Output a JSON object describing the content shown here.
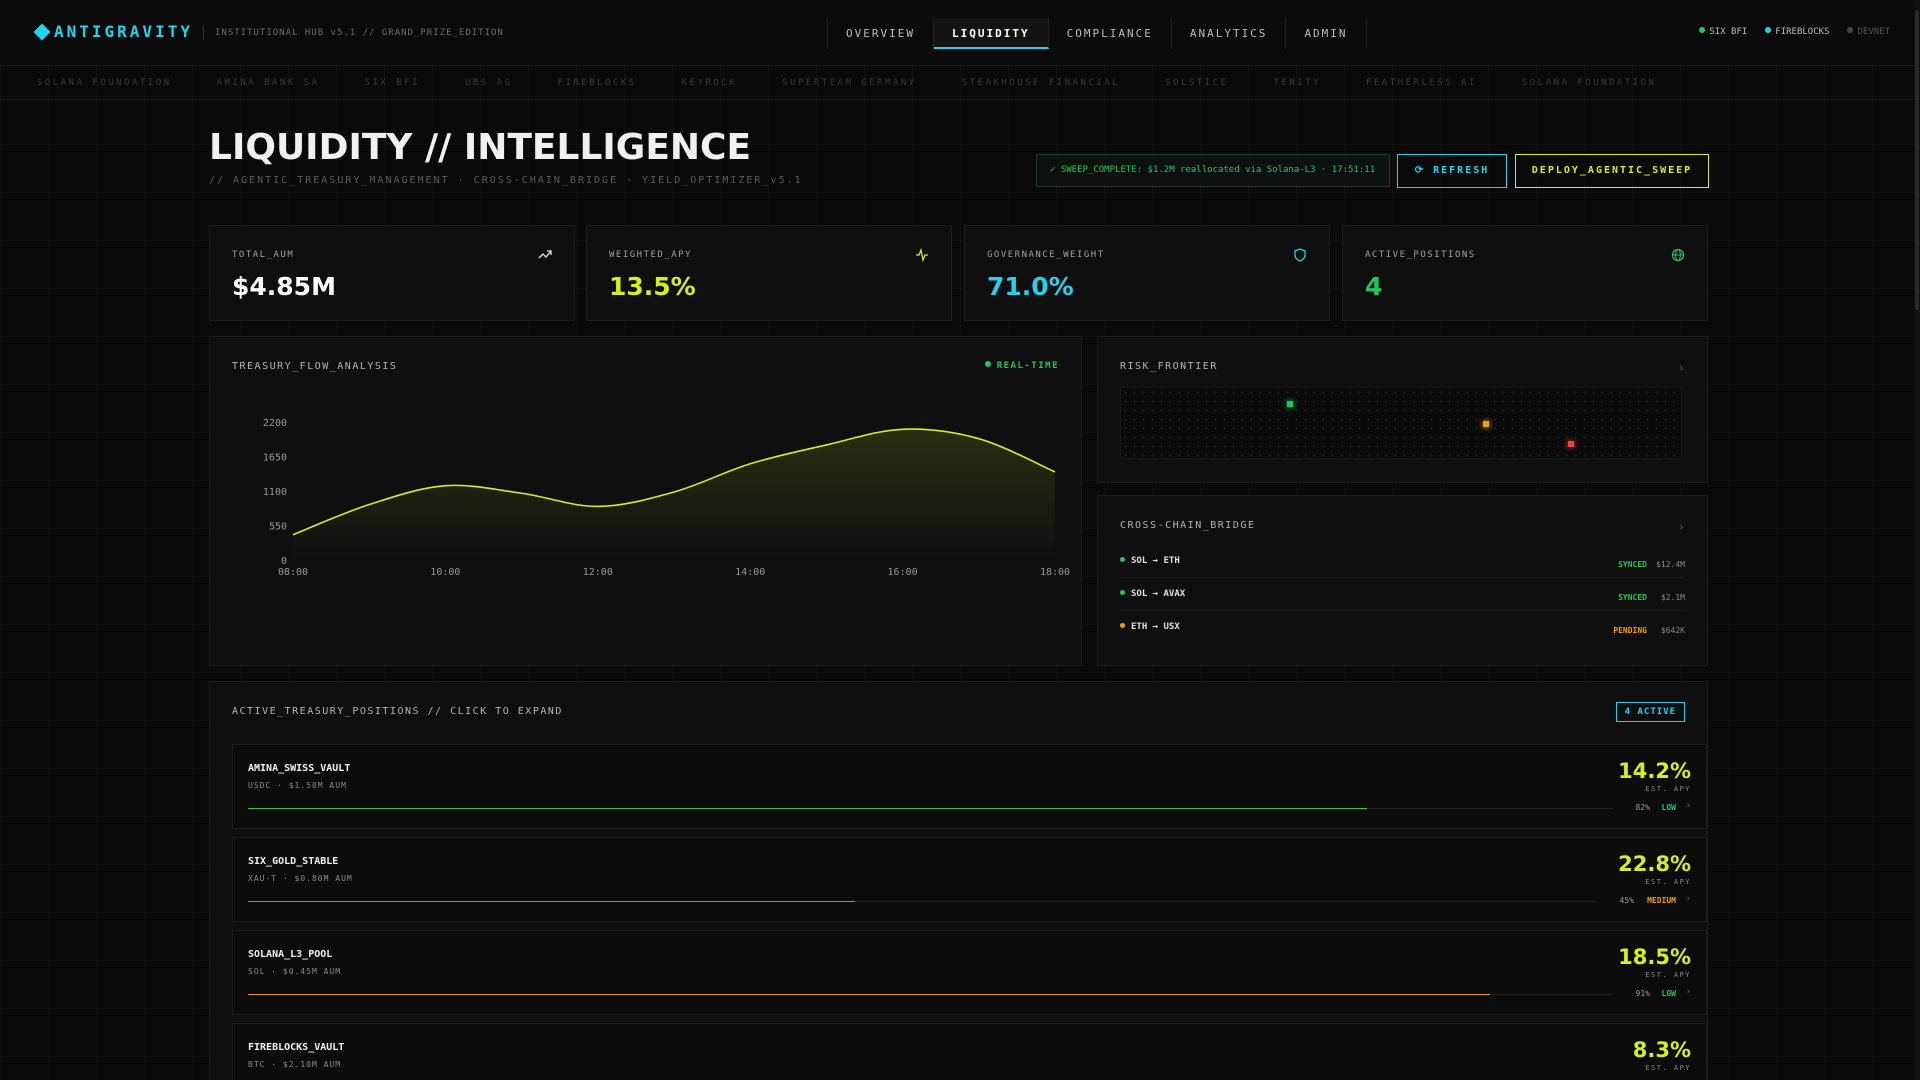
{
  "header": {
    "brand": "ANTIGRAVITY",
    "subtitle": "INSTITUTIONAL HUB v5.1 // GRAND_PRIZE_EDITION",
    "nav": [
      "OVERVIEW",
      "LIQUIDITY",
      "COMPLIANCE",
      "ANALYTICS",
      "ADMIN"
    ],
    "active_nav": "LIQUIDITY",
    "status": [
      {
        "label": "SIX BFI",
        "color": "#22c55e"
      },
      {
        "label": "FIREBLOCKS",
        "color": "#22d3ee"
      },
      {
        "label": "DEVNET",
        "color": "#555555"
      }
    ]
  },
  "ticker": [
    "SOLANA FOUNDATION",
    "AMINA BANK SA",
    "SIX BFI",
    "UBS AG",
    "FIREBLOCKS",
    "KEYROCK",
    "SUPERTEAM GERMANY",
    "STEAKHOUSE FINANCIAL",
    "SOLSTICE",
    "TENITY",
    "FEATHERLESS AI",
    "SOLANA FOUNDATION"
  ],
  "page": {
    "title": "LIQUIDITY // INTELLIGENCE",
    "subtitle": "// AGENTIC_TREASURY_MANAGEMENT · CROSS-CHAIN_BRIDGE · YIELD_OPTIMIZER_v5.1",
    "sweep_status": "✓ SWEEP_COMPLETE: $1.2M reallocated via Solana-L3 · 17:51:11",
    "refresh_label": "REFRESH",
    "deploy_label": "DEPLOY_AGENTIC_SWEEP"
  },
  "kpis": [
    {
      "label": "TOTAL_AUM",
      "value": "$4.85M",
      "icon": "trending-up-icon",
      "color": "#ffffff",
      "icon_color": "#e6e6e6"
    },
    {
      "label": "WEIGHTED_APY",
      "value": "13.5%",
      "icon": "activity-icon",
      "color": "#d4f020",
      "icon_color": "#d4f020"
    },
    {
      "label": "GOVERNANCE_WEIGHT",
      "value": "71.0%",
      "icon": "shield-icon",
      "color": "#22d3ee",
      "icon_color": "#22d3ee"
    },
    {
      "label": "ACTIVE_POSITIONS",
      "value": "4",
      "icon": "globe-icon",
      "color": "#22c55e",
      "icon_color": "#22c55e"
    }
  ],
  "flow_panel": {
    "title": "TREASURY_FLOW_ANALYSIS",
    "live_label": "REAL-TIME"
  },
  "chart_data": {
    "type": "area",
    "title": "TREASURY_FLOW_ANALYSIS",
    "x": [
      "08:00",
      "09:00",
      "10:00",
      "11:00",
      "12:00",
      "13:00",
      "14:00",
      "15:00",
      "16:00",
      "17:00",
      "18:00"
    ],
    "x_ticks": [
      "08:00",
      "10:00",
      "12:00",
      "14:00",
      "16:00",
      "18:00"
    ],
    "values": [
      420,
      900,
      1200,
      1080,
      870,
      1100,
      1550,
      1850,
      2100,
      1950,
      1420
    ],
    "yticks": [
      0,
      550,
      1100,
      1650,
      2200
    ],
    "ylim": [
      0,
      2200
    ],
    "color": "#d4f020"
  },
  "risk_panel": {
    "title": "RISK_FRONTIER",
    "points": [
      {
        "x": 0.3,
        "y": 0.78,
        "color": "#22c55e"
      },
      {
        "x": 0.65,
        "y": 0.5,
        "color": "#f59e0b"
      },
      {
        "x": 0.8,
        "y": 0.22,
        "color": "#ef4444"
      }
    ]
  },
  "bridge_panel": {
    "title": "CROSS-CHAIN_BRIDGE",
    "rows": [
      {
        "route": "SOL → ETH",
        "status": "SYNCED",
        "amount": "$12.4M",
        "color": "#22c55e"
      },
      {
        "route": "SOL → AVAX",
        "status": "SYNCED",
        "amount": "$2.1M",
        "color": "#22c55e"
      },
      {
        "route": "ETH → USX",
        "status": "PENDING",
        "amount": "$642K",
        "color": "#f59e0b"
      }
    ]
  },
  "positions_panel": {
    "title": "ACTIVE_TREASURY_POSITIONS // CLICK TO EXPAND",
    "badge": "4 ACTIVE",
    "apy_label": "EST. APY",
    "items": [
      {
        "name": "AMINA_SWISS_VAULT",
        "meta": "USDC · $1.50M AUM",
        "apy": "14.2%",
        "pct": "82%",
        "fill": 0.82,
        "risk": "LOW",
        "risk_color": "#22c55e",
        "bar_color": "#22c55e"
      },
      {
        "name": "SIX_GOLD_STABLE",
        "meta": "XAU-T · $0.80M AUM",
        "apy": "22.8%",
        "pct": "45%",
        "fill": 0.45,
        "risk": "MEDIUM",
        "risk_color": "#f59e0b",
        "bar_color": "#22c55e"
      },
      {
        "name": "SOLANA_L3_POOL",
        "meta": "SOL · $0.45M AUM",
        "apy": "18.5%",
        "pct": "91%",
        "fill": 0.91,
        "risk": "LOW",
        "risk_color": "#22c55e",
        "bar_color": "#f59e0b"
      },
      {
        "name": "FIREBLOCKS_VAULT",
        "meta": "BTC · $2.10M AUM",
        "apy": "8.3%",
        "pct": "",
        "fill": 0,
        "risk": "",
        "risk_color": "#22c55e",
        "bar_color": "#22c55e"
      }
    ]
  }
}
